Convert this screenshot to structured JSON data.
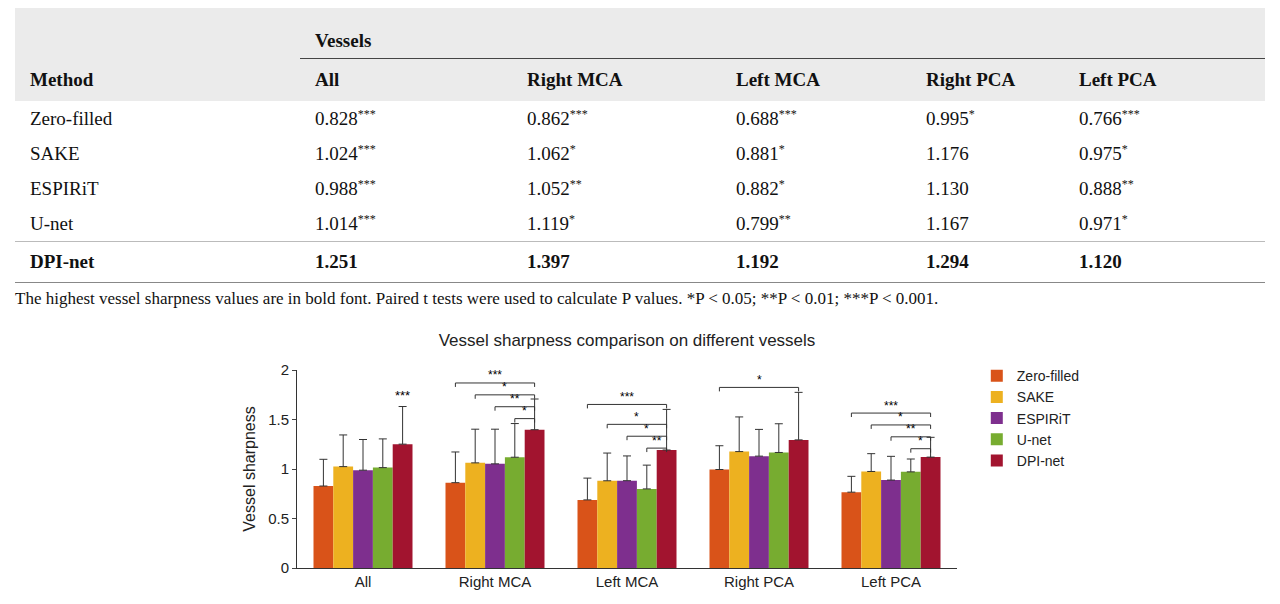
{
  "table": {
    "header": {
      "method": "Method",
      "group": "Vessels",
      "columns": [
        "All",
        "Right MCA",
        "Left MCA",
        "Right PCA",
        "Left PCA"
      ]
    },
    "rows": [
      {
        "method": "Zero-filled",
        "cells": [
          {
            "value": "0.828",
            "sig": "***"
          },
          {
            "value": "0.862",
            "sig": "***"
          },
          {
            "value": "0.688",
            "sig": "***"
          },
          {
            "value": "0.995",
            "sig": "*"
          },
          {
            "value": "0.766",
            "sig": "***"
          }
        ]
      },
      {
        "method": "SAKE",
        "cells": [
          {
            "value": "1.024",
            "sig": "***"
          },
          {
            "value": "1.062",
            "sig": "*"
          },
          {
            "value": "0.881",
            "sig": "*"
          },
          {
            "value": "1.176"
          },
          {
            "value": "0.975",
            "sig": "*"
          }
        ]
      },
      {
        "method": "ESPIRiT",
        "cells": [
          {
            "value": "0.988",
            "sig": "***"
          },
          {
            "value": "1.052",
            "sig": "**"
          },
          {
            "value": "0.882",
            "sig": "*"
          },
          {
            "value": "1.130"
          },
          {
            "value": "0.888",
            "sig": "**"
          }
        ]
      },
      {
        "method": "U-net",
        "cells": [
          {
            "value": "1.014",
            "sig": "***"
          },
          {
            "value": "1.119",
            "sig": "*"
          },
          {
            "value": "0.799",
            "sig": "**"
          },
          {
            "value": "1.167"
          },
          {
            "value": "0.971",
            "sig": "*"
          }
        ]
      },
      {
        "method": "DPI-net",
        "bold": true,
        "cells": [
          {
            "value": "1.251"
          },
          {
            "value": "1.397"
          },
          {
            "value": "1.192"
          },
          {
            "value": "1.294"
          },
          {
            "value": "1.120"
          }
        ]
      }
    ],
    "footnote": "The highest vessel sharpness values are in bold font. Paired t tests were used to calculate P values. *P < 0.05; **P < 0.01; ***P < 0.001."
  },
  "chart_data": {
    "type": "bar",
    "title": "Vessel sharpness comparison on different vessels",
    "y_label": "Vessel sharpness",
    "categories": [
      "All",
      "Right MCA",
      "Left MCA",
      "Right PCA",
      "Left PCA"
    ],
    "series": [
      {
        "name": "Zero-filled",
        "color": "#D95319",
        "values": [
          0.828,
          0.862,
          0.688,
          0.995,
          0.766
        ],
        "errors": [
          0.27,
          0.31,
          0.22,
          0.24,
          0.16
        ]
      },
      {
        "name": "SAKE",
        "color": "#EDB120",
        "values": [
          1.024,
          1.062,
          0.881,
          1.176,
          0.975
        ],
        "errors": [
          0.32,
          0.34,
          0.28,
          0.35,
          0.18
        ]
      },
      {
        "name": "ESPIRiT",
        "color": "#7E2F8E",
        "values": [
          0.988,
          1.052,
          0.882,
          1.13,
          0.888
        ],
        "errors": [
          0.31,
          0.35,
          0.25,
          0.27,
          0.24
        ]
      },
      {
        "name": "U-net",
        "color": "#77AC30",
        "values": [
          1.014,
          1.119,
          0.799,
          1.167,
          0.971
        ],
        "errors": [
          0.29,
          0.34,
          0.24,
          0.29,
          0.13
        ]
      },
      {
        "name": "DPI-net",
        "color": "#A2142F",
        "values": [
          1.251,
          1.397,
          1.192,
          1.294,
          1.12
        ],
        "errors": [
          0.38,
          0.31,
          0.41,
          0.48,
          0.2
        ]
      }
    ],
    "significance": [
      {
        "category": "All",
        "label": "***"
      },
      {
        "category": "Right MCA",
        "from": "Zero-filled",
        "to": "DPI-net",
        "label": "***"
      },
      {
        "category": "Right MCA",
        "from": "SAKE",
        "to": "DPI-net",
        "label": "*"
      },
      {
        "category": "Right MCA",
        "from": "ESPIRiT",
        "to": "DPI-net",
        "label": "**"
      },
      {
        "category": "Right MCA",
        "from": "U-net",
        "to": "DPI-net",
        "label": "*"
      },
      {
        "category": "Left MCA",
        "from": "Zero-filled",
        "to": "DPI-net",
        "label": "***"
      },
      {
        "category": "Left MCA",
        "from": "SAKE",
        "to": "DPI-net",
        "label": "*"
      },
      {
        "category": "Left MCA",
        "from": "ESPIRiT",
        "to": "DPI-net",
        "label": "*"
      },
      {
        "category": "Left MCA",
        "from": "U-net",
        "to": "DPI-net",
        "label": "**"
      },
      {
        "category": "Right PCA",
        "from": "Zero-filled",
        "to": "DPI-net",
        "label": "*"
      },
      {
        "category": "Left PCA",
        "from": "Zero-filled",
        "to": "DPI-net",
        "label": "***"
      },
      {
        "category": "Left PCA",
        "from": "SAKE",
        "to": "DPI-net",
        "label": "*"
      },
      {
        "category": "Left PCA",
        "from": "ESPIRiT",
        "to": "DPI-net",
        "label": "**"
      },
      {
        "category": "Left PCA",
        "from": "U-net",
        "to": "DPI-net",
        "label": "*"
      }
    ],
    "ylim": [
      0,
      2
    ],
    "yticks": [
      0,
      0.5,
      1,
      1.5,
      2
    ],
    "grid": false,
    "legend": "right"
  }
}
